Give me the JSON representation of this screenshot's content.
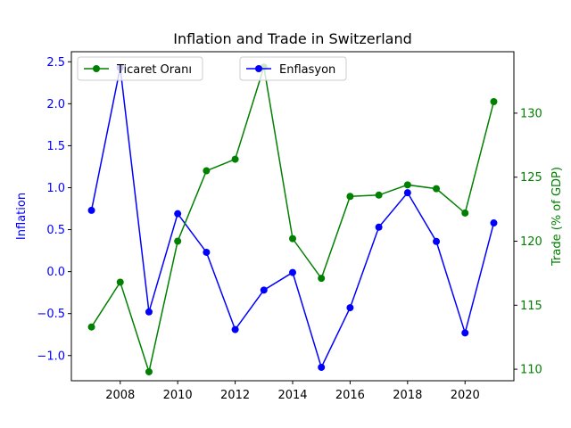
{
  "chart_data": {
    "type": "line",
    "title": "Inflation and Trade in Switzerland",
    "x": [
      2007,
      2008,
      2009,
      2010,
      2011,
      2012,
      2013,
      2014,
      2015,
      2016,
      2017,
      2018,
      2019,
      2020,
      2021
    ],
    "xticks": [
      2008,
      2010,
      2012,
      2014,
      2016,
      2018,
      2020
    ],
    "xlim": [
      2006.3,
      2021.7
    ],
    "left_axis": {
      "label": "Inflation",
      "color": "#0000ff",
      "ylim": [
        -1.3,
        2.62
      ],
      "ticks": [
        -1.0,
        -0.5,
        0.0,
        0.5,
        1.0,
        1.5,
        2.0,
        2.5
      ],
      "tick_labels": [
        "−1.0",
        "−0.5",
        "0.0",
        "0.5",
        "1.0",
        "1.5",
        "2.0",
        "2.5"
      ]
    },
    "right_axis": {
      "label": "Trade (% of GDP)",
      "color": "#008000",
      "ylim": [
        109.1,
        134.8
      ],
      "ticks": [
        110,
        115,
        120,
        125,
        130
      ],
      "tick_labels": [
        "110",
        "115",
        "120",
        "125",
        "130"
      ]
    },
    "series": [
      {
        "name": "Enflasyon",
        "axis": "left",
        "color": "#0000ff",
        "values": [
          0.73,
          2.43,
          -0.48,
          0.69,
          0.23,
          -0.69,
          -0.22,
          -0.01,
          -1.14,
          -0.43,
          0.53,
          0.94,
          0.36,
          -0.73,
          0.58
        ]
      },
      {
        "name": "Ticaret Oranı",
        "axis": "right",
        "color": "#008000",
        "values": [
          113.3,
          116.8,
          109.8,
          120.0,
          125.5,
          126.4,
          133.6,
          120.2,
          117.1,
          123.5,
          123.6,
          124.4,
          124.1,
          122.2,
          130.9
        ]
      }
    ],
    "legends": [
      {
        "series": "Ticaret Oranı",
        "placement": "upper-left"
      },
      {
        "series": "Enflasyon",
        "placement": "upper-center"
      }
    ]
  }
}
